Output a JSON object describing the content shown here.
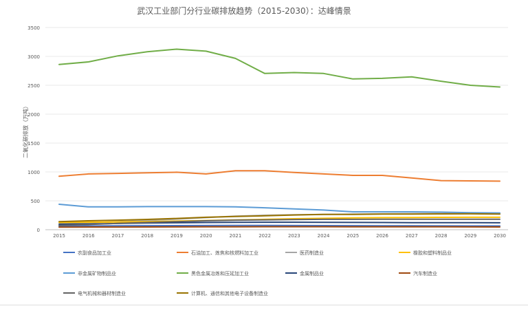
{
  "chart_data": {
    "type": "line",
    "title": "武汉工业部门分行业碳排放趋势（2015-2030）：达峰情景",
    "ylabel": "二氧化碳排放（万吨）",
    "xlabel": "",
    "x": [
      "2015",
      "2016",
      "2017",
      "2018",
      "2019",
      "2020",
      "2021",
      "2022",
      "2023",
      "2024",
      "2025",
      "2026",
      "2027",
      "2028",
      "2029",
      "2030"
    ],
    "ylim": [
      0,
      3500
    ],
    "yticks": [
      0,
      500,
      1000,
      1500,
      2000,
      2500,
      3000,
      3500
    ],
    "grid": true,
    "legend_position": "bottom",
    "series": [
      {
        "name": "农副食品加工业",
        "color": "#4472C4",
        "values": [
          60,
          65,
          68,
          70,
          72,
          73,
          74,
          74,
          73,
          72,
          70,
          69,
          68,
          67,
          66,
          65
        ]
      },
      {
        "name": "石油加工、炼焦和核燃料加工业",
        "color": "#ED7D31",
        "values": [
          925,
          965,
          975,
          985,
          995,
          965,
          1020,
          1020,
          990,
          965,
          940,
          940,
          895,
          850,
          845,
          840
        ]
      },
      {
        "name": "医药制造业",
        "color": "#A5A5A5",
        "values": [
          100,
          120,
          140,
          160,
          185,
          210,
          235,
          250,
          260,
          265,
          270,
          275,
          278,
          280,
          282,
          285
        ]
      },
      {
        "name": "橡胶和塑料制品业",
        "color": "#FFC000",
        "values": [
          125,
          130,
          135,
          140,
          150,
          160,
          170,
          180,
          190,
          198,
          205,
          210,
          212,
          214,
          215,
          215
        ]
      },
      {
        "name": "非金属矿物制品业",
        "color": "#5B9BD5",
        "values": [
          440,
          395,
          395,
          400,
          400,
          400,
          395,
          380,
          360,
          340,
          310,
          310,
          310,
          305,
          295,
          290
        ]
      },
      {
        "name": "黑色金属冶炼和压延加工业",
        "color": "#70AD47",
        "values": [
          2860,
          2905,
          3010,
          3080,
          3125,
          3090,
          2965,
          2705,
          2720,
          2705,
          2610,
          2620,
          2645,
          2570,
          2500,
          2470
        ]
      },
      {
        "name": "金属制品业",
        "color": "#264478",
        "values": [
          95,
          100,
          108,
          115,
          120,
          125,
          128,
          130,
          130,
          128,
          126,
          125,
          123,
          122,
          121,
          120
        ]
      },
      {
        "name": "汽车制造业",
        "color": "#9E480E",
        "values": [
          45,
          46,
          47,
          48,
          49,
          50,
          51,
          52,
          52,
          52,
          51,
          51,
          50,
          50,
          49,
          48
        ]
      },
      {
        "name": "电气机械和器材制造业",
        "color": "#636363",
        "values": [
          75,
          90,
          110,
          125,
          140,
          155,
          165,
          170,
          175,
          180,
          180,
          182,
          182,
          182,
          182,
          182
        ]
      },
      {
        "name": "计算机、通信和其他电子设备制造业",
        "color": "#997300",
        "values": [
          140,
          155,
          165,
          178,
          195,
          215,
          230,
          240,
          255,
          265,
          265,
          270,
          272,
          274,
          275,
          270
        ]
      }
    ]
  }
}
